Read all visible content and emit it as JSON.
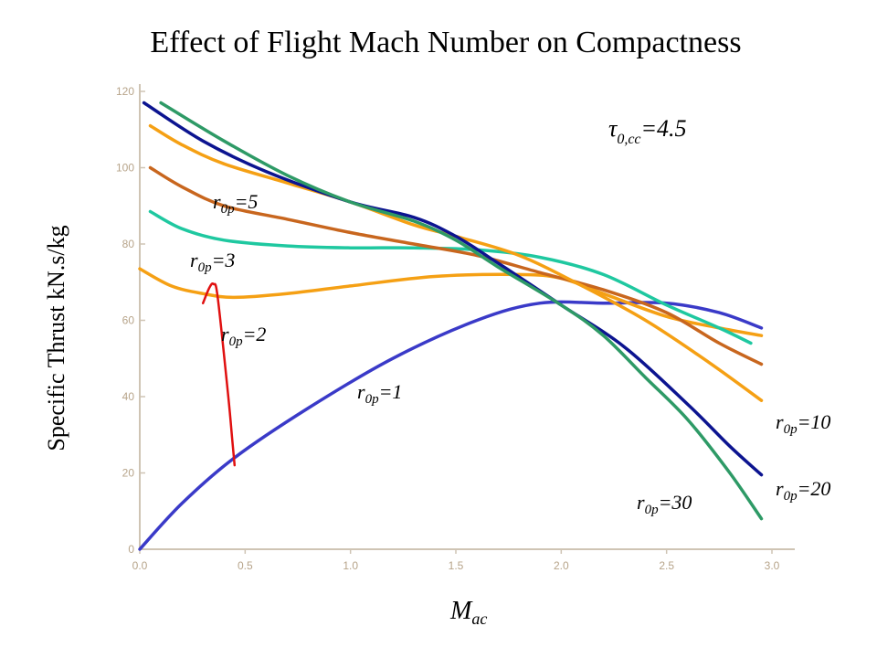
{
  "chart_data": {
    "type": "line",
    "title": "Effect of Flight Mach Number on Compactness",
    "xlabel": "M",
    "xlabel_sub": "ac",
    "ylabel": "Specific  Thrust kN.s/kg",
    "xlim": [
      0.0,
      3.0
    ],
    "ylim": [
      0,
      120
    ],
    "x_ticks": [
      "0.0",
      "0.5",
      "1.0",
      "1.5",
      "2.0",
      "2.5",
      "3.0"
    ],
    "y_ticks": [
      "0",
      "20",
      "40",
      "60",
      "80",
      "100",
      "120"
    ],
    "annotation": {
      "symbol": "τ",
      "sub": "0,cc",
      "value": "=4.5"
    },
    "series": [
      {
        "name": "r0p=1",
        "color": "#3a3ac8",
        "x": [
          0.0,
          0.2,
          0.45,
          0.8,
          1.2,
          1.6,
          1.9,
          2.2,
          2.5,
          2.75,
          2.95
        ],
        "y": [
          0,
          12,
          24,
          37,
          50,
          60,
          64.5,
          64.5,
          64.5,
          62,
          58
        ]
      },
      {
        "name": "r0p=2",
        "color": "#f5a014",
        "x": [
          0.0,
          0.15,
          0.3,
          0.45,
          0.7,
          1.0,
          1.4,
          1.8,
          2.0,
          2.2,
          2.5,
          2.75,
          2.95
        ],
        "y": [
          73.5,
          69,
          67,
          66,
          67,
          69,
          71.5,
          72,
          71,
          67,
          61,
          58,
          56
        ]
      },
      {
        "name": "r0p=3",
        "color": "#1fc8a0",
        "x": [
          0.05,
          0.2,
          0.4,
          0.7,
          1.0,
          1.3,
          1.6,
          1.9,
          2.2,
          2.5,
          2.75,
          2.9
        ],
        "y": [
          88.5,
          84,
          81,
          79.5,
          79,
          79,
          78.5,
          76.5,
          72,
          64,
          58,
          54
        ]
      },
      {
        "name": "r0p=5",
        "color": "#c8661e",
        "x": [
          0.05,
          0.2,
          0.4,
          0.7,
          1.0,
          1.3,
          1.6,
          1.9,
          2.2,
          2.5,
          2.75,
          2.95
        ],
        "y": [
          100,
          95,
          90,
          86.5,
          83,
          80,
          77,
          72.5,
          68,
          62,
          54,
          48.5
        ]
      },
      {
        "name": "r0p=10",
        "color": "#f5a014",
        "x": [
          0.05,
          0.2,
          0.4,
          0.7,
          1.0,
          1.3,
          1.5,
          1.8,
          2.1,
          2.4,
          2.7,
          2.95
        ],
        "y": [
          111,
          106,
          101,
          96,
          91,
          85,
          82,
          77,
          69,
          60,
          49,
          39
        ]
      },
      {
        "name": "r0p=20",
        "color": "#0c1490",
        "x": [
          0.02,
          0.3,
          0.6,
          1.0,
          1.3,
          1.5,
          1.7,
          2.0,
          2.3,
          2.6,
          2.8,
          2.95
        ],
        "y": [
          117,
          107,
          99,
          91,
          87,
          82,
          75,
          64,
          53,
          38,
          27,
          19.5
        ]
      },
      {
        "name": "r0p=30",
        "color": "#2e9a66",
        "x": [
          0.1,
          0.4,
          0.7,
          1.0,
          1.3,
          1.5,
          1.7,
          2.0,
          2.2,
          2.4,
          2.6,
          2.8,
          2.95
        ],
        "y": [
          117,
          107,
          98,
          91,
          86,
          81,
          74,
          64,
          56,
          45,
          34,
          20,
          8
        ]
      }
    ],
    "series_labels": [
      {
        "series": "r0p=5",
        "text": "r",
        "sub": "0p",
        "tail": "=5"
      },
      {
        "series": "r0p=3",
        "text": "r",
        "sub": "0p",
        "tail": "=3"
      },
      {
        "series": "r0p=2",
        "text": "r",
        "sub": "0p",
        "tail": "=2"
      },
      {
        "series": "r0p=1",
        "text": "r",
        "sub": "0p",
        "tail": "=1"
      },
      {
        "series": "r0p=10",
        "text": "r",
        "sub": "0p",
        "tail": "=10"
      },
      {
        "series": "r0p=20",
        "text": "r",
        "sub": "0p",
        "tail": "=20"
      },
      {
        "series": "r0p=30",
        "text": "r",
        "sub": "0p",
        "tail": "=30"
      }
    ],
    "annotation_stroke": {
      "color": "#e01010",
      "x": [
        0.3,
        0.33,
        0.35,
        0.37,
        0.42,
        0.44,
        0.45
      ],
      "y": [
        64.5,
        68.5,
        69.5,
        66,
        40,
        28,
        22
      ]
    }
  }
}
